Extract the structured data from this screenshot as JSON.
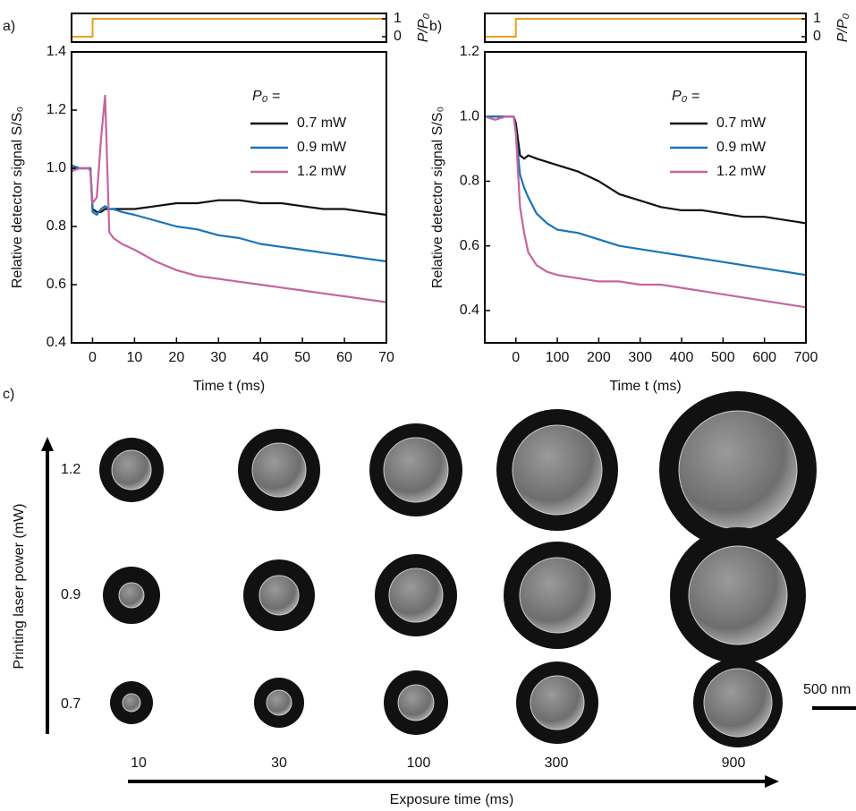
{
  "chart_data": [
    {
      "type": "line",
      "panel_label": "a)",
      "xlabel": "Time t (ms)",
      "ylabel": "Relative detector signal S/S₀",
      "xlim": [
        -5,
        70
      ],
      "ylim": [
        0.4,
        1.4
      ],
      "xticks": [
        0,
        10,
        20,
        30,
        40,
        50,
        60,
        70
      ],
      "yticks": [
        0.4,
        0.6,
        0.8,
        {
          "value": 1,
          "label": "1.0"
        },
        1.2,
        1.4
      ],
      "legend_title": "P₀ =",
      "legend": "upper right",
      "x": [
        -5,
        -3,
        -1,
        -0.5,
        0,
        1,
        2,
        3,
        4,
        5,
        7,
        10,
        15,
        20,
        25,
        30,
        35,
        40,
        45,
        50,
        55,
        60,
        65,
        70
      ],
      "series": [
        {
          "name": "0.7 mW",
          "color": "#111111",
          "values": [
            1.0,
            1.0,
            1.0,
            1.0,
            0.86,
            0.85,
            0.85,
            0.86,
            0.86,
            0.86,
            0.86,
            0.86,
            0.87,
            0.88,
            0.88,
            0.89,
            0.89,
            0.88,
            0.88,
            0.87,
            0.86,
            0.86,
            0.85,
            0.84
          ]
        },
        {
          "name": "0.9 mW",
          "color": "#1a74b8",
          "values": [
            1.01,
            1.0,
            1.0,
            1.0,
            0.85,
            0.84,
            0.86,
            0.87,
            0.86,
            0.86,
            0.85,
            0.84,
            0.82,
            0.8,
            0.79,
            0.77,
            0.76,
            0.74,
            0.73,
            0.72,
            0.71,
            0.7,
            0.69,
            0.68
          ]
        },
        {
          "name": "1.2 mW",
          "color": "#c6649e",
          "values": [
            0.99,
            1.0,
            1.0,
            0.99,
            0.88,
            0.9,
            1.1,
            1.25,
            0.78,
            0.76,
            0.74,
            0.72,
            0.68,
            0.65,
            0.63,
            0.62,
            0.61,
            0.6,
            0.59,
            0.58,
            0.57,
            0.56,
            0.55,
            0.54
          ]
        }
      ],
      "inset": {
        "type": "line",
        "ylabel": "P/P₀",
        "xlim": [
          -5,
          70
        ],
        "ylim": [
          -0.3,
          1.3
        ],
        "yticks": [
          0,
          1
        ],
        "x": [
          -5,
          0,
          0,
          70
        ],
        "series": [
          {
            "color": "#e8a020",
            "values": [
              0,
              0,
              1,
              1
            ]
          }
        ]
      }
    },
    {
      "type": "line",
      "panel_label": "b)",
      "xlabel": "Time t (ms)",
      "ylabel": "Relative detector signal S/S₀",
      "xlim": [
        -75,
        700
      ],
      "ylim": [
        0.3,
        1.2
      ],
      "xticks": [
        0,
        100,
        200,
        300,
        400,
        500,
        600,
        700
      ],
      "yticks": [
        0.4,
        0.6,
        0.8,
        {
          "value": 1,
          "label": "1.0"
        },
        1.2
      ],
      "legend_title": "P₀ =",
      "legend": "upper right",
      "x": [
        -75,
        -50,
        -25,
        -5,
        0,
        10,
        20,
        30,
        50,
        75,
        100,
        150,
        200,
        250,
        300,
        350,
        400,
        450,
        500,
        550,
        600,
        650,
        700
      ],
      "series": [
        {
          "name": "0.7 mW",
          "color": "#111111",
          "values": [
            1.0,
            1.0,
            1.0,
            1.0,
            0.98,
            0.88,
            0.87,
            0.88,
            0.87,
            0.86,
            0.85,
            0.83,
            0.8,
            0.76,
            0.74,
            0.72,
            0.71,
            0.71,
            0.7,
            0.69,
            0.69,
            0.68,
            0.67
          ]
        },
        {
          "name": "0.9 mW",
          "color": "#1a74b8",
          "values": [
            1.0,
            1.0,
            1.0,
            1.0,
            0.95,
            0.82,
            0.78,
            0.75,
            0.7,
            0.67,
            0.65,
            0.64,
            0.62,
            0.6,
            0.59,
            0.58,
            0.57,
            0.56,
            0.55,
            0.54,
            0.53,
            0.52,
            0.51
          ]
        },
        {
          "name": "1.2 mW",
          "color": "#c6649e",
          "values": [
            1.0,
            0.99,
            1.0,
            1.0,
            0.95,
            0.72,
            0.64,
            0.58,
            0.54,
            0.52,
            0.51,
            0.5,
            0.49,
            0.49,
            0.48,
            0.48,
            0.47,
            0.46,
            0.45,
            0.44,
            0.43,
            0.42,
            0.41
          ]
        }
      ],
      "inset": {
        "type": "line",
        "ylabel": "P/P₀",
        "xlim": [
          -75,
          700
        ],
        "ylim": [
          -0.3,
          1.3
        ],
        "yticks": [
          0,
          1
        ],
        "x": [
          -75,
          0,
          0,
          700
        ],
        "series": [
          {
            "color": "#e8a020",
            "values": [
              0,
              0,
              1,
              1
            ]
          }
        ]
      }
    }
  ],
  "panel_c": {
    "label": "c)",
    "y_label": "Printing laser power (mW)",
    "x_label": "Exposure time (ms)",
    "rows": [
      "1.2",
      "0.9",
      "0.7"
    ],
    "columns": [
      "10",
      "30",
      "100",
      "300",
      "900"
    ],
    "scale_bar": "500 nm"
  }
}
